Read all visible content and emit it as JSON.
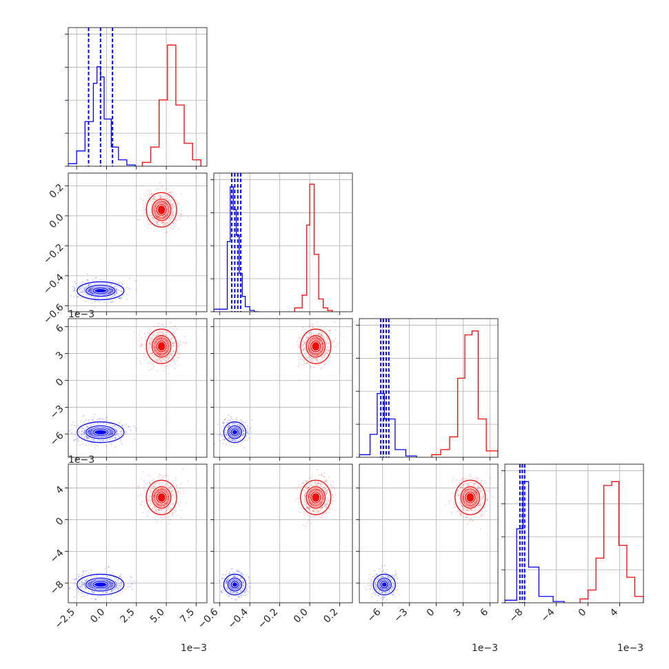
{
  "chart_data": {
    "type": "corner",
    "parameters": 4,
    "grid": true,
    "colors": {
      "series_a": "#0000ff",
      "series_b": "#ff0000",
      "frame": "#000000",
      "grid": "#b0b0b0"
    },
    "axes": [
      {
        "range": [
          -3.2,
          8.4
        ],
        "ticks": [
          -2.5,
          0.0,
          2.5,
          5.0,
          7.5
        ],
        "tick_labels": [
          "−2.5",
          "0.0",
          "2.5",
          "5.0",
          "7.5"
        ],
        "exponent": "1e−3"
      },
      {
        "range": [
          -0.64,
          0.285
        ],
        "ticks": [
          -0.6,
          -0.4,
          -0.2,
          0.0,
          0.2
        ],
        "tick_labels": [
          "−0.6",
          "−0.4",
          "−0.2",
          "0.0",
          "0.2"
        ],
        "exponent": ""
      },
      {
        "range": [
          -8.6,
          6.9
        ],
        "ticks": [
          -6,
          -3,
          0,
          3,
          6
        ],
        "tick_labels": [
          "−6",
          "−3",
          "0",
          "3",
          "6"
        ],
        "exponent": "1e−3"
      },
      {
        "range": [
          -10.5,
          7.0
        ],
        "ticks": [
          -8,
          -4,
          0,
          4
        ],
        "tick_labels": [
          "−8",
          "−4",
          "0",
          "4"
        ],
        "exponent": "1e−3"
      }
    ],
    "series_a": {
      "centers": [
        -0.5,
        -0.5,
        -5.8,
        -8.2
      ],
      "quantiles": [
        [
          -1.5,
          -0.5,
          0.5
        ],
        [
          -0.52,
          -0.5,
          -0.48,
          -0.46
        ],
        [
          -6.2,
          -5.9,
          -5.6,
          -5.3
        ],
        [
          -8.6,
          -8.3,
          -8.0
        ]
      ],
      "histograms": [
        {
          "bins": [
            -3.2,
            -2.5,
            -1.8,
            -1.1,
            -0.8,
            -0.5,
            -0.2,
            0.4,
            1.0,
            1.7,
            2.4
          ],
          "counts": [
            0.02,
            0.12,
            0.35,
            0.65,
            0.78,
            0.7,
            0.37,
            0.15,
            0.05,
            0.01
          ]
        },
        {
          "bins": [
            -0.64,
            -0.55,
            -0.53,
            -0.51,
            -0.49,
            -0.47,
            -0.45,
            -0.43,
            -0.4,
            -0.37,
            -0.34
          ],
          "counts": [
            0.02,
            0.55,
            0.98,
            0.8,
            0.6,
            0.3,
            0.12,
            0.04,
            0.01,
            0.0
          ]
        },
        {
          "bins": [
            -8.6,
            -7.4,
            -6.6,
            -5.8,
            -4.6,
            -3.4,
            -2.2
          ],
          "counts": [
            0.02,
            0.18,
            0.5,
            0.3,
            0.06,
            0.01
          ]
        },
        {
          "bins": [
            -10.5,
            -9.0,
            -8.2,
            -7.5,
            -6.2,
            -4.4,
            -3.0
          ],
          "counts": [
            0.02,
            0.58,
            0.95,
            0.28,
            0.05,
            0.01
          ]
        }
      ]
    },
    "series_b": {
      "centers": [
        4.6,
        0.04,
        3.8,
        2.8
      ],
      "histograms": [
        {
          "bins": [
            3.0,
            3.7,
            4.4,
            5.1,
            5.8,
            6.5,
            7.2,
            7.9
          ],
          "counts": [
            0.03,
            0.15,
            0.52,
            0.95,
            0.48,
            0.18,
            0.05
          ]
        },
        {
          "bins": [
            -0.1,
            -0.05,
            -0.02,
            0.0,
            0.03,
            0.06,
            0.09,
            0.12,
            0.15
          ],
          "counts": [
            0.03,
            0.13,
            0.68,
            1.0,
            0.45,
            0.1,
            0.03,
            0.01
          ]
        },
        {
          "bins": [
            -0.5,
            0.5,
            1.5,
            2.4,
            3.2,
            4.0,
            4.7,
            5.6,
            6.9
          ],
          "counts": [
            0.02,
            0.06,
            0.16,
            0.62,
            0.96,
            0.99,
            0.3,
            0.05
          ]
        },
        {
          "bins": [
            -1.0,
            0.0,
            1.0,
            2.0,
            3.0,
            3.9,
            4.9,
            5.9,
            7.0
          ],
          "counts": [
            0.03,
            0.1,
            0.35,
            0.92,
            0.95,
            0.45,
            0.2,
            0.05
          ]
        }
      ]
    }
  }
}
